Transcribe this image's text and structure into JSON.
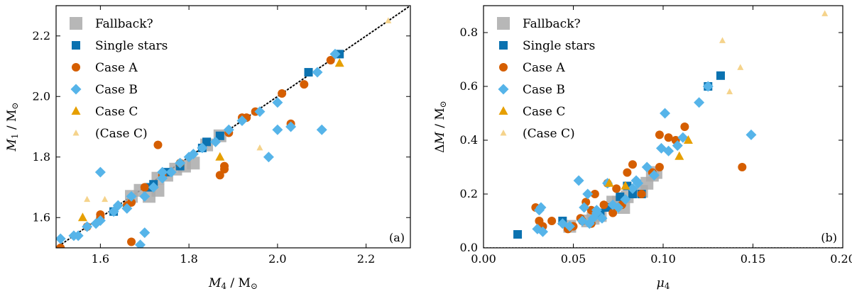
{
  "colors": {
    "fallback": "#aaaaaa",
    "single": "#0b72b0",
    "caseA": "#d55e00",
    "caseB": "#56b4e9",
    "caseC": "#e69f00",
    "caseCfaint": "#f5d38b",
    "axis": "#000000"
  },
  "legend": [
    {
      "key": "fallback",
      "label": "Fallback?",
      "marker": "bigsquare"
    },
    {
      "key": "single",
      "label": "Single stars",
      "marker": "square"
    },
    {
      "key": "caseA",
      "label": "Case A",
      "marker": "circle"
    },
    {
      "key": "caseB",
      "label": "Case B",
      "marker": "diamond"
    },
    {
      "key": "caseC",
      "label": "Case C",
      "marker": "triangle"
    },
    {
      "key": "caseCfaint",
      "label": "(Case C)",
      "marker": "smalltriangle"
    }
  ],
  "chart_data": [
    {
      "type": "scatter",
      "panel_label": "(a)",
      "xlabel": "M4 / M⊙",
      "ylabel": "M1 / M⊙",
      "xlim": [
        1.5,
        2.3
      ],
      "ylim": [
        1.5,
        2.3
      ],
      "xticks": [
        1.6,
        1.8,
        2.0,
        2.2
      ],
      "xticklabels": [
        "1.6",
        "1.8",
        "2.0",
        "2.2"
      ],
      "yticks": [
        1.6,
        1.8,
        2.0,
        2.2
      ],
      "yticklabels": [
        "1.6",
        "1.8",
        "2.0",
        "2.2"
      ],
      "diagonal": {
        "style": "dotted",
        "from": [
          1.5,
          1.5
        ],
        "to": [
          2.3,
          2.3
        ]
      },
      "series": [
        {
          "key": "fallback",
          "points": [
            [
              1.67,
              1.67
            ],
            [
              1.69,
              1.69
            ],
            [
              1.71,
              1.67
            ],
            [
              1.73,
              1.73
            ],
            [
              1.75,
              1.74
            ],
            [
              1.77,
              1.76
            ],
            [
              1.79,
              1.77
            ],
            [
              1.81,
              1.78
            ],
            [
              1.84,
              1.84
            ],
            [
              1.87,
              1.87
            ],
            [
              1.73,
              1.69
            ]
          ]
        },
        {
          "key": "single",
          "points": [
            [
              1.63,
              1.62
            ],
            [
              1.71,
              1.7
            ],
            [
              1.78,
              1.77
            ],
            [
              1.83,
              1.83
            ],
            [
              1.84,
              1.85
            ],
            [
              1.87,
              1.87
            ],
            [
              2.07,
              2.08
            ],
            [
              2.14,
              2.14
            ],
            [
              1.75,
              1.75
            ],
            [
              1.72,
              1.71
            ]
          ]
        },
        {
          "key": "caseA",
          "points": [
            [
              1.51,
              1.5
            ],
            [
              1.6,
              1.6
            ],
            [
              1.6,
              1.61
            ],
            [
              1.67,
              1.52
            ],
            [
              1.67,
              1.65
            ],
            [
              1.73,
              1.84
            ],
            [
              1.87,
              1.74
            ],
            [
              1.88,
              1.76
            ],
            [
              1.89,
              1.88
            ],
            [
              1.92,
              1.93
            ],
            [
              1.95,
              1.95
            ],
            [
              2.03,
              1.91
            ],
            [
              2.01,
              2.01
            ],
            [
              2.06,
              2.04
            ],
            [
              2.12,
              2.12
            ],
            [
              1.93,
              1.93
            ],
            [
              1.66,
              1.64
            ],
            [
              1.74,
              1.74
            ],
            [
              1.78,
              1.78
            ],
            [
              1.88,
              1.77
            ],
            [
              1.57,
              1.57
            ],
            [
              1.7,
              1.7
            ]
          ]
        },
        {
          "key": "caseB",
          "points": [
            [
              1.51,
              1.53
            ],
            [
              1.54,
              1.54
            ],
            [
              1.55,
              1.54
            ],
            [
              1.57,
              1.57
            ],
            [
              1.59,
              1.58
            ],
            [
              1.6,
              1.75
            ],
            [
              1.6,
              1.59
            ],
            [
              1.64,
              1.64
            ],
            [
              1.66,
              1.63
            ],
            [
              1.69,
              1.51
            ],
            [
              1.7,
              1.55
            ],
            [
              1.7,
              1.67
            ],
            [
              1.72,
              1.7
            ],
            [
              1.74,
              1.75
            ],
            [
              1.76,
              1.75
            ],
            [
              1.78,
              1.78
            ],
            [
              1.8,
              1.8
            ],
            [
              1.83,
              1.83
            ],
            [
              1.86,
              1.85
            ],
            [
              1.89,
              1.89
            ],
            [
              1.92,
              1.92
            ],
            [
              1.96,
              1.95
            ],
            [
              1.98,
              1.8
            ],
            [
              2.0,
              1.89
            ],
            [
              2.0,
              1.98
            ],
            [
              2.03,
              1.9
            ],
            [
              2.09,
              2.08
            ],
            [
              2.1,
              1.89
            ],
            [
              2.13,
              2.14
            ],
            [
              1.81,
              1.81
            ],
            [
              1.74,
              1.73
            ],
            [
              1.67,
              1.67
            ],
            [
              1.63,
              1.62
            ]
          ]
        },
        {
          "key": "caseC",
          "points": [
            [
              1.56,
              1.6
            ],
            [
              1.87,
              1.8
            ],
            [
              2.14,
              2.11
            ]
          ]
        },
        {
          "key": "caseCfaint",
          "points": [
            [
              1.57,
              1.66
            ],
            [
              1.61,
              1.66
            ],
            [
              1.96,
              1.83
            ],
            [
              2.25,
              2.25
            ]
          ]
        }
      ]
    },
    {
      "type": "scatter",
      "panel_label": "(b)",
      "xlabel": "μ4",
      "ylabel": "ΔM / M⊙",
      "xlim": [
        0.0,
        0.2
      ],
      "ylim": [
        0.0,
        0.9
      ],
      "xticks": [
        0.0,
        0.05,
        0.1,
        0.15,
        0.2
      ],
      "xticklabels": [
        "0.00",
        "0.05",
        "0.10",
        "0.15",
        "0.20"
      ],
      "yticks": [
        0.0,
        0.2,
        0.4,
        0.6,
        0.8
      ],
      "yticklabels": [
        "0.0",
        "0.2",
        "0.4",
        "0.6",
        "0.8"
      ],
      "baseline": {
        "style": "dotted",
        "y": 0.0
      },
      "series": [
        {
          "key": "fallback",
          "points": [
            [
              0.048,
              0.08
            ],
            [
              0.058,
              0.1
            ],
            [
              0.061,
              0.11
            ],
            [
              0.065,
              0.12
            ],
            [
              0.072,
              0.17
            ],
            [
              0.075,
              0.17
            ],
            [
              0.078,
              0.15
            ],
            [
              0.08,
              0.19
            ],
            [
              0.088,
              0.21
            ],
            [
              0.091,
              0.24
            ],
            [
              0.094,
              0.27
            ],
            [
              0.096,
              0.28
            ]
          ]
        },
        {
          "key": "single",
          "points": [
            [
              0.019,
              0.05
            ],
            [
              0.044,
              0.1
            ],
            [
              0.065,
              0.13
            ],
            [
              0.069,
              0.15
            ],
            [
              0.076,
              0.19
            ],
            [
              0.08,
              0.23
            ],
            [
              0.125,
              0.6
            ],
            [
              0.132,
              0.64
            ],
            [
              0.07,
              0.15
            ],
            [
              0.083,
              0.2
            ],
            [
              0.088,
              0.2
            ]
          ]
        },
        {
          "key": "caseA",
          "points": [
            [
              0.029,
              0.15
            ],
            [
              0.031,
              0.1
            ],
            [
              0.033,
              0.08
            ],
            [
              0.038,
              0.1
            ],
            [
              0.047,
              0.07
            ],
            [
              0.05,
              0.08
            ],
            [
              0.054,
              0.11
            ],
            [
              0.055,
              0.1
            ],
            [
              0.057,
              0.17
            ],
            [
              0.06,
              0.14
            ],
            [
              0.062,
              0.2
            ],
            [
              0.067,
              0.16
            ],
            [
              0.069,
              0.24
            ],
            [
              0.072,
              0.13
            ],
            [
              0.074,
              0.22
            ],
            [
              0.077,
              0.16
            ],
            [
              0.08,
              0.28
            ],
            [
              0.083,
              0.31
            ],
            [
              0.088,
              0.2
            ],
            [
              0.094,
              0.28
            ],
            [
              0.098,
              0.42
            ],
            [
              0.098,
              0.3
            ],
            [
              0.103,
              0.41
            ],
            [
              0.107,
              0.4
            ],
            [
              0.112,
              0.45
            ],
            [
              0.144,
              0.3
            ],
            [
              0.06,
              0.09
            ]
          ]
        },
        {
          "key": "caseB",
          "points": [
            [
              0.03,
              0.07
            ],
            [
              0.031,
              0.14
            ],
            [
              0.032,
              0.15
            ],
            [
              0.033,
              0.06
            ],
            [
              0.044,
              0.09
            ],
            [
              0.048,
              0.08
            ],
            [
              0.053,
              0.25
            ],
            [
              0.056,
              0.15
            ],
            [
              0.058,
              0.2
            ],
            [
              0.059,
              0.09
            ],
            [
              0.061,
              0.11
            ],
            [
              0.063,
              0.14
            ],
            [
              0.066,
              0.11
            ],
            [
              0.069,
              0.24
            ],
            [
              0.072,
              0.16
            ],
            [
              0.075,
              0.15
            ],
            [
              0.079,
              0.18
            ],
            [
              0.083,
              0.22
            ],
            [
              0.085,
              0.25
            ],
            [
              0.091,
              0.3
            ],
            [
              0.095,
              0.27
            ],
            [
              0.099,
              0.37
            ],
            [
              0.101,
              0.5
            ],
            [
              0.103,
              0.36
            ],
            [
              0.108,
              0.38
            ],
            [
              0.111,
              0.41
            ],
            [
              0.12,
              0.54
            ],
            [
              0.125,
              0.6
            ],
            [
              0.149,
              0.42
            ],
            [
              0.055,
              0.1
            ],
            [
              0.063,
              0.13
            ],
            [
              0.086,
              0.24
            ]
          ]
        },
        {
          "key": "caseC",
          "points": [
            [
              0.07,
              0.24
            ],
            [
              0.079,
              0.23
            ],
            [
              0.109,
              0.34
            ],
            [
              0.114,
              0.4
            ]
          ]
        },
        {
          "key": "caseCfaint",
          "points": [
            [
              0.133,
              0.77
            ],
            [
              0.137,
              0.58
            ],
            [
              0.143,
              0.67
            ],
            [
              0.19,
              0.87
            ]
          ]
        }
      ]
    }
  ]
}
